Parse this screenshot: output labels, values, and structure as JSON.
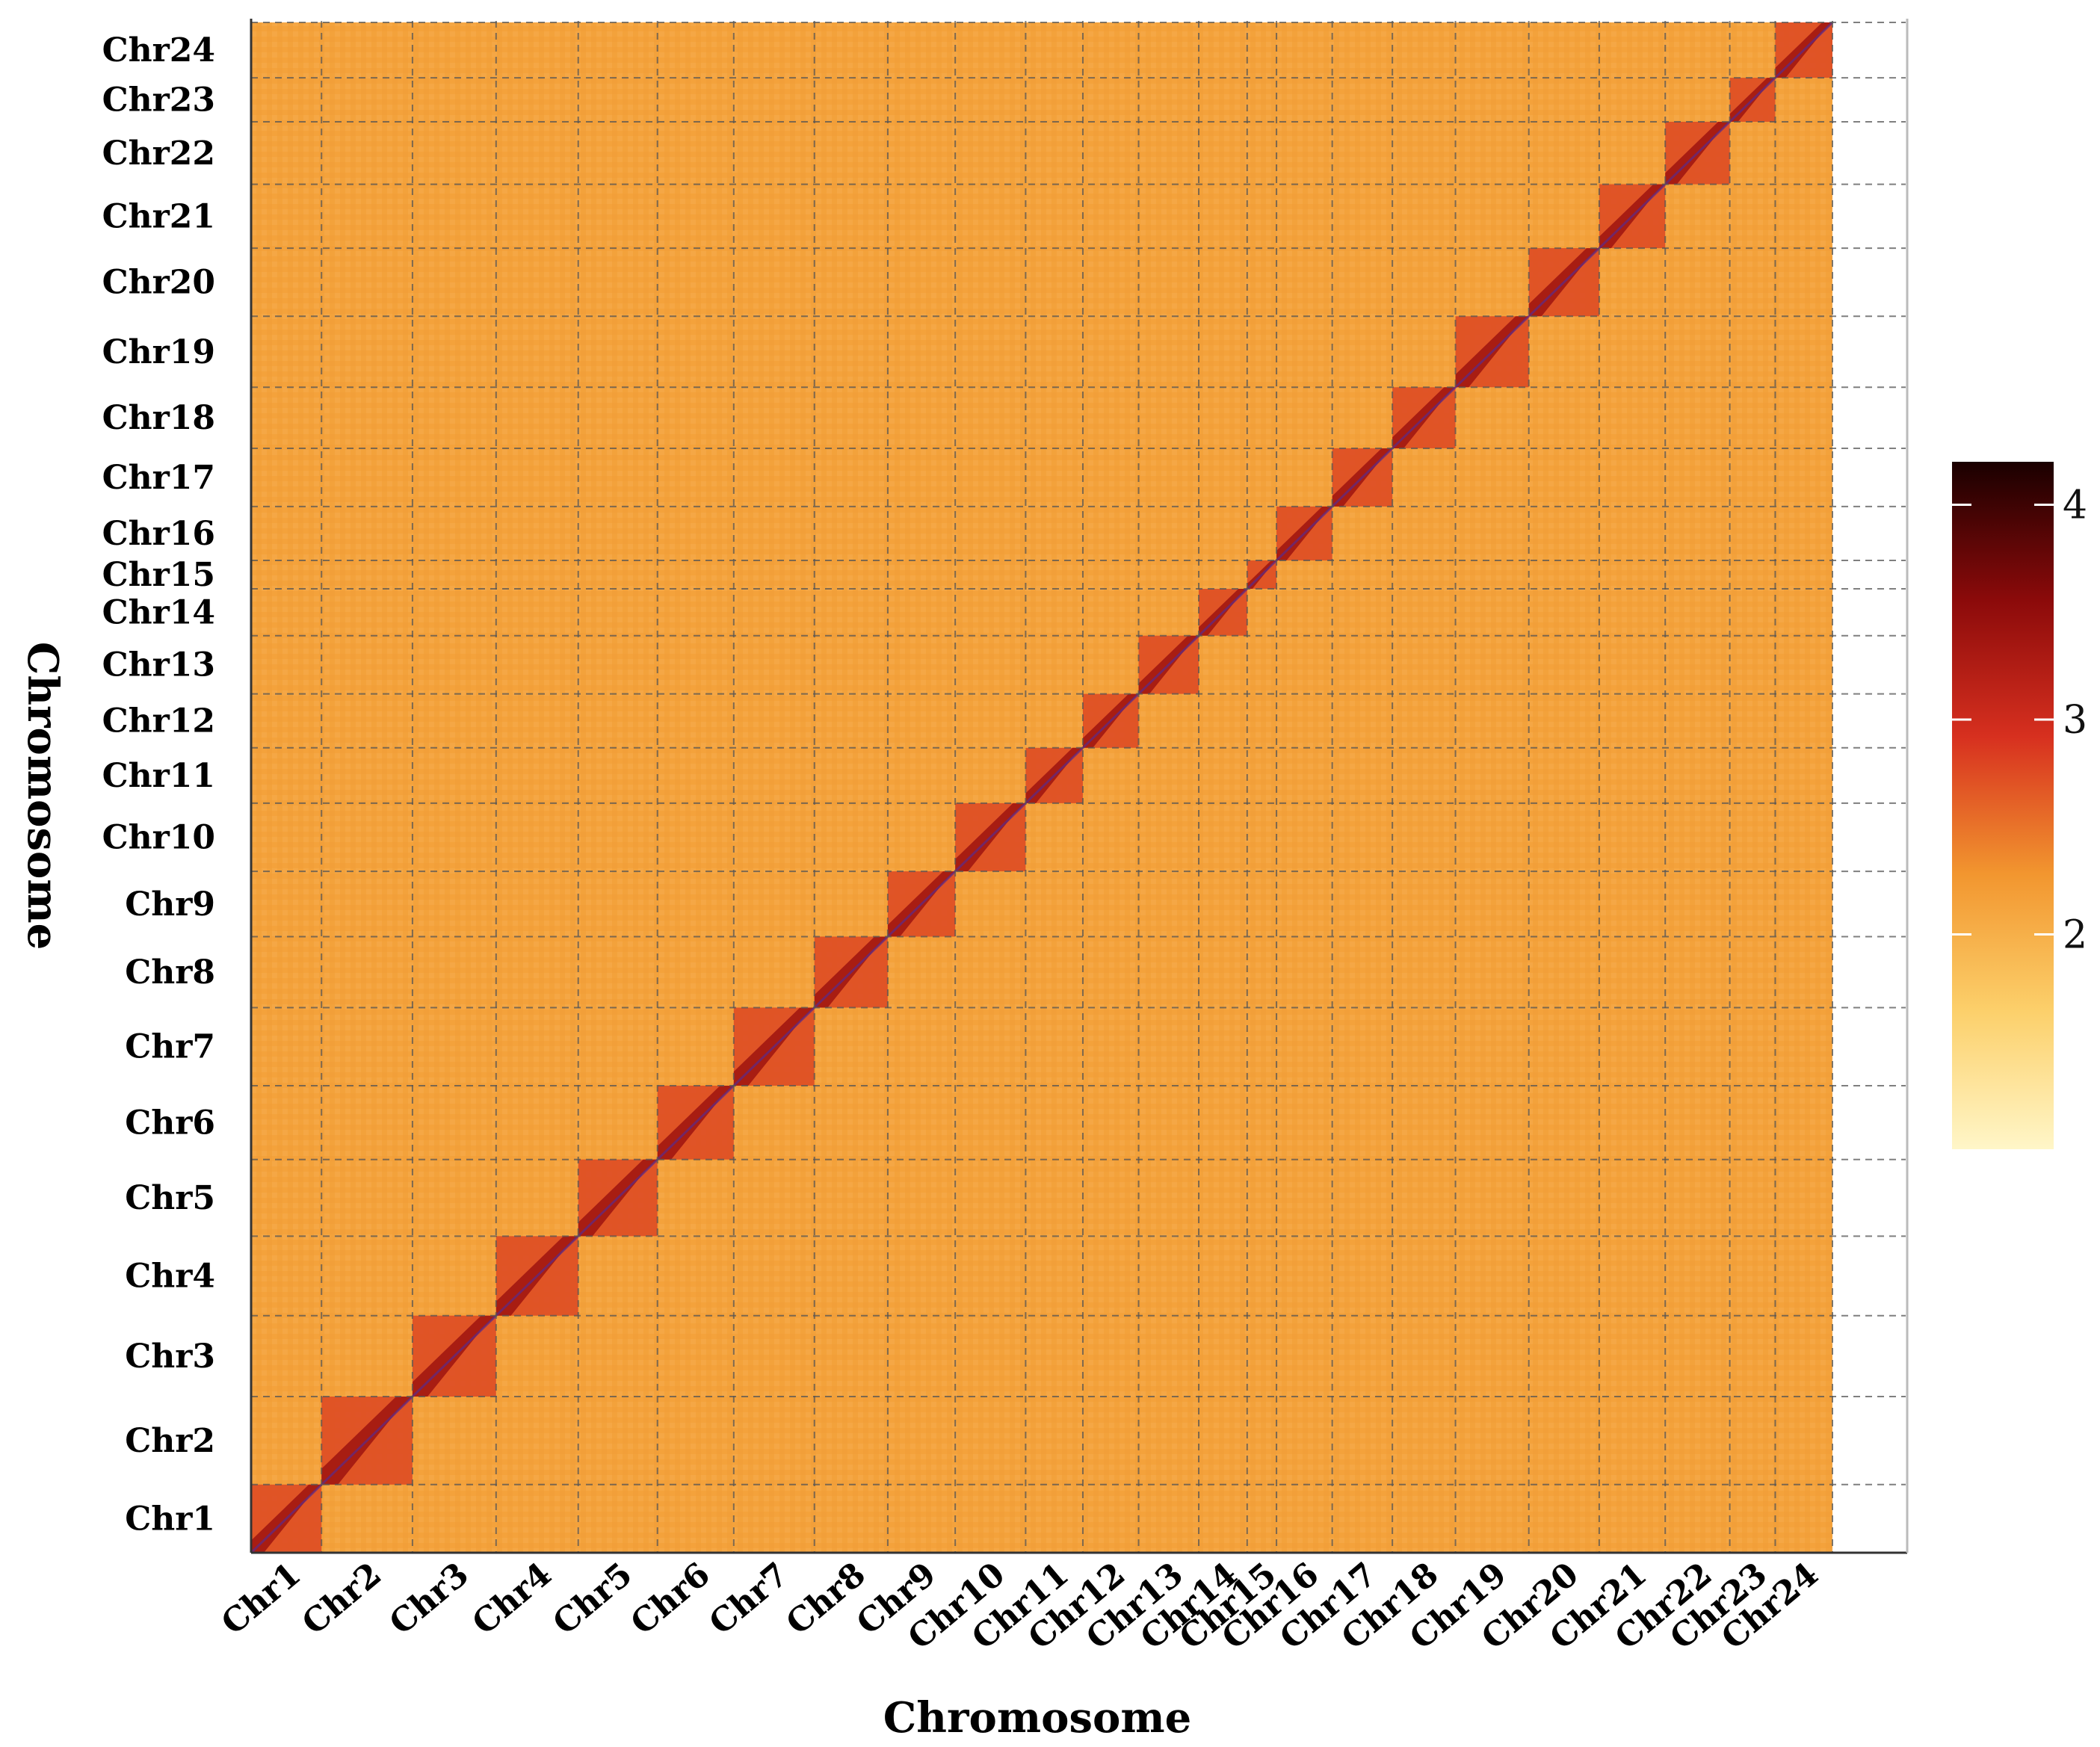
{
  "chart_data": {
    "type": "heatmap",
    "title": "",
    "xlabel": "Chromosome",
    "ylabel": "Chromosome",
    "chromosomes": [
      "Chr1",
      "Chr2",
      "Chr3",
      "Chr4",
      "Chr5",
      "Chr6",
      "Chr7",
      "Chr8",
      "Chr9",
      "Chr10",
      "Chr11",
      "Chr12",
      "Chr13",
      "Chr14",
      "Chr15",
      "Chr16",
      "Chr17",
      "Chr18",
      "Chr19",
      "Chr20",
      "Chr21",
      "Chr22",
      "Chr23",
      "Chr24"
    ],
    "relative_sizes": [
      48,
      62,
      57,
      56,
      54,
      52,
      55,
      50,
      46,
      48,
      39,
      38,
      41,
      33,
      20,
      38,
      41,
      43,
      50,
      48,
      45,
      44,
      31,
      39
    ],
    "colorbar": {
      "ticks": [
        2,
        3,
        4
      ],
      "range": [
        1,
        4.2
      ],
      "colors": [
        "#fff6c8",
        "#fcd06b",
        "#f2962f",
        "#d7301f",
        "#8b0a0a",
        "#1a0000"
      ]
    },
    "background_level": 2.15,
    "diagonal_level": 3.4,
    "grid": "dashed chromosome boundaries"
  }
}
